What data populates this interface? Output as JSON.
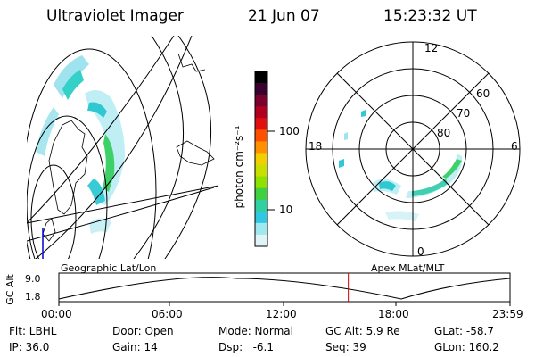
{
  "header": {
    "title": "Ultraviolet Imager",
    "date": "21 Jun 07",
    "time": "15:23:32 UT"
  },
  "colorbar": {
    "unit": "photon cm⁻²s⁻¹",
    "ticks": [
      "100",
      "10"
    ],
    "colors": [
      "#000000",
      "#3a0030",
      "#7a0030",
      "#b00020",
      "#e01010",
      "#ff5000",
      "#ff9000",
      "#f0d000",
      "#c8e000",
      "#90e000",
      "#40d040",
      "#30d0a0",
      "#30c8e0",
      "#a0e8f0",
      "#e0f4f8"
    ]
  },
  "polar": {
    "mlt_labels": {
      "top": "12",
      "left": "18",
      "right": "6",
      "bottom": "0"
    },
    "lat_labels": [
      "60",
      "70",
      "80"
    ]
  },
  "timeline": {
    "left_title": "Geographic Lat/Lon",
    "right_title": "Apex MLat/MLT",
    "axis_label": "GC Alt",
    "y_ticks": [
      "9.0",
      "1.8"
    ],
    "x_ticks": [
      "00:00",
      "06:00",
      "12:00",
      "18:00",
      "23:59"
    ],
    "current_fraction": 0.6416,
    "marker_color": "#cc0000"
  },
  "info": {
    "filter": "Flt: LBHL",
    "ip": "IP: 36.0",
    "door": "Door: Open",
    "gain": "Gain: 14",
    "mode": "Mode: Normal",
    "dsp": "Dsp:   -6.1",
    "gc_alt": "GC Alt: 5.9 Re",
    "seq": "Seq: 39",
    "glat": "GLat: -58.7",
    "glon": "GLon: 160.2"
  }
}
